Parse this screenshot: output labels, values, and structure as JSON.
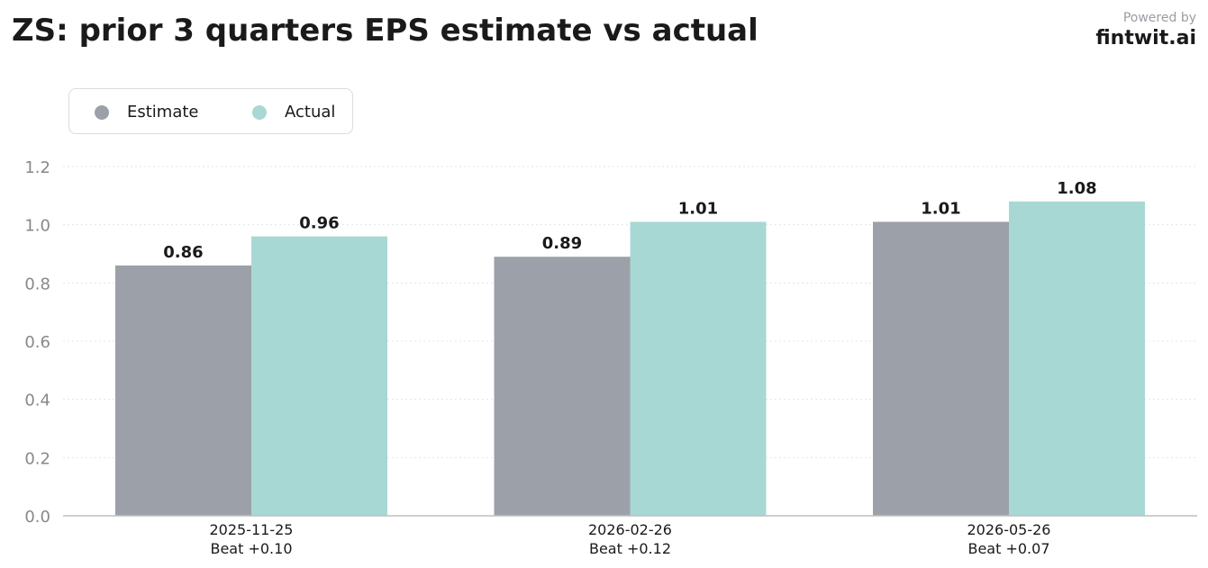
{
  "header": {
    "title": "ZS: prior 3 quarters EPS estimate vs actual",
    "powered_by": "Powered by",
    "brand": "fintwit.ai"
  },
  "colors": {
    "estimate": "#9ca0a8",
    "actual": "#a8d8d4",
    "axis": "#bfbfbf",
    "grid": "#e4e4e4",
    "tick_text": "#888888",
    "label_text": "#1a1a1a"
  },
  "chart_data": {
    "type": "bar",
    "title": "ZS: prior 3 quarters EPS estimate vs actual",
    "categories": [
      "2025-11-25",
      "2026-02-26",
      "2026-05-26"
    ],
    "category_sublabels": [
      "Beat +0.10",
      "Beat +0.12",
      "Beat +0.07"
    ],
    "series": [
      {
        "name": "Estimate",
        "values": [
          0.86,
          0.89,
          1.01
        ],
        "labels": [
          "0.86",
          "0.89",
          "1.01"
        ]
      },
      {
        "name": "Actual",
        "values": [
          0.96,
          1.01,
          1.08
        ],
        "labels": [
          "0.96",
          "1.01",
          "1.08"
        ]
      }
    ],
    "ylim": [
      0,
      1.2
    ],
    "yticks": [
      "0.0",
      "0.2",
      "0.4",
      "0.6",
      "0.8",
      "1.0",
      "1.2"
    ],
    "grid": true,
    "legend_position": "top-left",
    "xlabel": "",
    "ylabel": ""
  }
}
